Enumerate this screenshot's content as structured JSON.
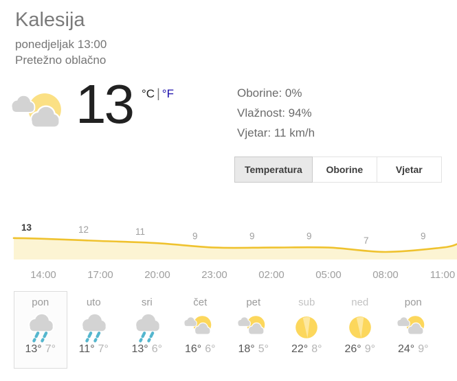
{
  "location": {
    "title": "Kalesija",
    "datetime": "ponedjeljak 13:00",
    "condition": "Pretežno oblačno"
  },
  "current": {
    "temperature": "13",
    "unit_celsius": "°C",
    "unit_separator": "|",
    "unit_fahrenheit": "°F",
    "icon": "partly-cloudy-icon",
    "precipitation": "Oborine: 0%",
    "humidity": "Vlažnost: 94%",
    "wind": "Vjetar: 11 km/h"
  },
  "tabs": [
    {
      "label": "Temperatura",
      "active": true
    },
    {
      "label": "Oborine",
      "active": false
    },
    {
      "label": "Vjetar",
      "active": false
    }
  ],
  "chart_data": {
    "type": "area",
    "x": [
      "14:00",
      "17:00",
      "20:00",
      "23:00",
      "02:00",
      "05:00",
      "08:00",
      "11:00"
    ],
    "values": [
      13,
      12,
      11,
      9,
      9,
      9,
      7,
      9
    ],
    "ylim": [
      0,
      16
    ],
    "grid": false,
    "line_color": "#efc22e",
    "fill_color": "#fcf4d3",
    "label_color": "#9e9e9e",
    "first_label_color": "#3c3c3c",
    "tick_color": "#9e9e9e"
  },
  "forecast": {
    "days": [
      {
        "name": "pon",
        "icon": "rain-icon",
        "high": "13°",
        "low": "7°",
        "selected": true,
        "muted": false
      },
      {
        "name": "uto",
        "icon": "rain-icon",
        "high": "11°",
        "low": "7°",
        "selected": false,
        "muted": false
      },
      {
        "name": "sri",
        "icon": "rain-icon",
        "high": "13°",
        "low": "6°",
        "selected": false,
        "muted": false
      },
      {
        "name": "čet",
        "icon": "partly-cloudy-icon",
        "high": "16°",
        "low": "6°",
        "selected": false,
        "muted": false
      },
      {
        "name": "pet",
        "icon": "partly-cloudy-icon",
        "high": "18°",
        "low": "5°",
        "selected": false,
        "muted": false
      },
      {
        "name": "sub",
        "icon": "sunny-icon",
        "high": "22°",
        "low": "8°",
        "selected": false,
        "muted": true
      },
      {
        "name": "ned",
        "icon": "sunny-icon",
        "high": "26°",
        "low": "9°",
        "selected": false,
        "muted": true
      },
      {
        "name": "pon",
        "icon": "partly-cloudy-icon",
        "high": "24°",
        "low": "9°",
        "selected": false,
        "muted": false
      }
    ]
  },
  "colors": {
    "link_blue": "#1a0dab",
    "sun_yellow": "#fcd75c",
    "sun_pale_yellow": "#fbe084",
    "cloud_gray": "#d3d3d3",
    "rain_blue": "#54b6ce",
    "chart_line": "#efc22e",
    "chart_fill": "#fcf4d3"
  }
}
